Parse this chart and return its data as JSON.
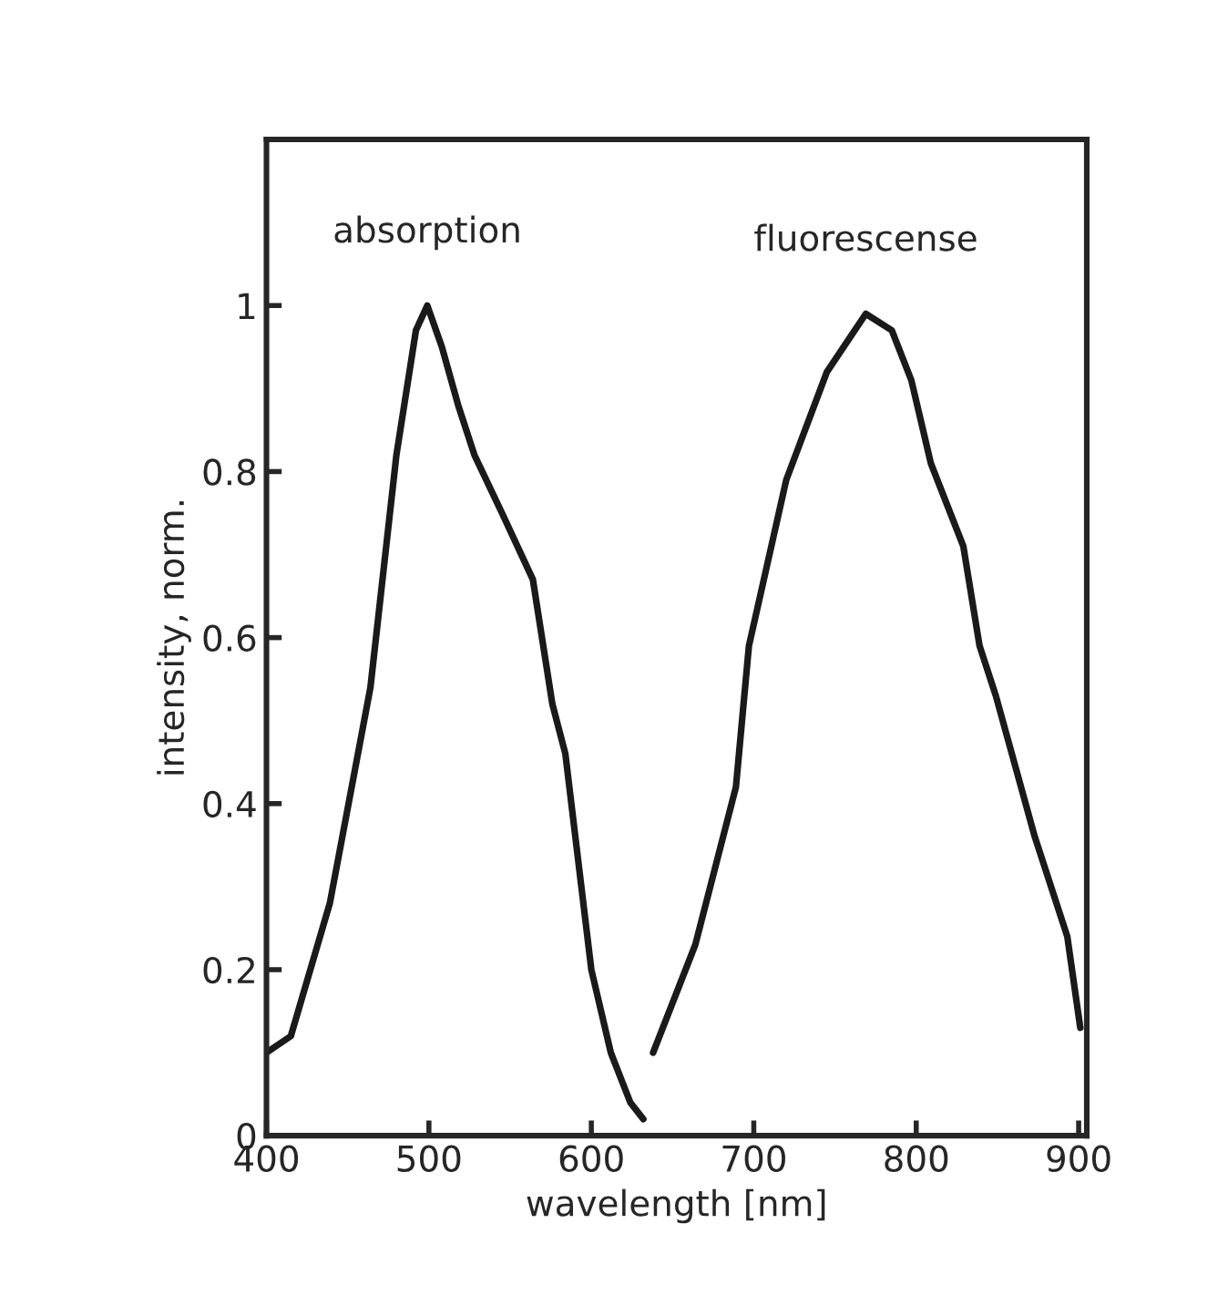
{
  "chart_data": {
    "type": "line",
    "xlabel": "wavelength [nm]",
    "ylabel": "intensity, norm.",
    "xlim": [
      400,
      905
    ],
    "ylim": [
      0,
      1.2
    ],
    "xticks": [
      400,
      500,
      600,
      700,
      800,
      900
    ],
    "yticks": [
      0,
      0.2,
      0.4,
      0.6,
      0.8,
      1
    ],
    "grid": false,
    "legend": false,
    "marker": "none",
    "line_style": "solid",
    "series": [
      {
        "name": "absorption",
        "color": "#1a1a1a",
        "x": [
          400,
          415,
          439,
          464,
          480,
          492,
          499,
          508,
          518,
          528,
          545,
          564,
          576,
          584,
          592,
          600,
          612,
          624,
          632
        ],
        "values": [
          0.1,
          0.12,
          0.28,
          0.54,
          0.82,
          0.97,
          1.0,
          0.95,
          0.88,
          0.82,
          0.75,
          0.67,
          0.52,
          0.46,
          0.33,
          0.2,
          0.1,
          0.04,
          0.02
        ]
      },
      {
        "name": "fluorescense",
        "color": "#1a1a1a",
        "x": [
          638,
          664,
          689,
          697,
          720,
          745,
          769,
          785,
          797,
          809,
          829,
          839,
          849,
          873,
          893,
          901
        ],
        "values": [
          0.1,
          0.23,
          0.42,
          0.59,
          0.79,
          0.92,
          0.99,
          0.97,
          0.91,
          0.81,
          0.71,
          0.59,
          0.53,
          0.36,
          0.24,
          0.13
        ]
      }
    ]
  }
}
